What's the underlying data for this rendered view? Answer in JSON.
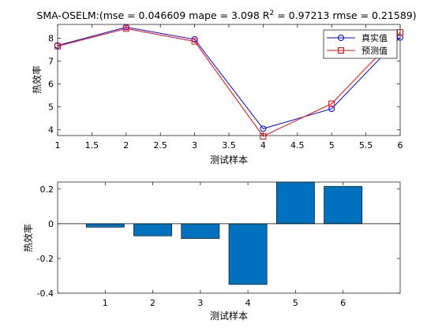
{
  "chart_data": [
    {
      "type": "line",
      "title_main": "SMA-OSELM:(mse = 0.046609 mape = 3.098  R",
      "title_sup": "2",
      "title_rest": " = 0.97213 rmse = 0.21589)",
      "xlabel": "测试样本",
      "ylabel": "热效率",
      "xlim": [
        1,
        6
      ],
      "ylim": [
        3.75,
        8.6
      ],
      "xticks": [
        1,
        1.5,
        2,
        2.5,
        3,
        3.5,
        4,
        4.5,
        5,
        5.5,
        6
      ],
      "xtick_labels": [
        "1",
        "1.5",
        "2",
        "2.5",
        "3",
        "3.5",
        "4",
        "4.5",
        "5",
        "5.5",
        "6"
      ],
      "yticks": [
        4,
        5,
        6,
        7,
        8
      ],
      "ytick_labels": [
        "4",
        "5",
        "6",
        "7",
        "8"
      ],
      "x": [
        1,
        2,
        3,
        4,
        5,
        6
      ],
      "series": [
        {
          "name": "真实值",
          "values": [
            7.68,
            8.48,
            7.95,
            4.05,
            4.92,
            8.03
          ],
          "color": "#0000ff",
          "marker": "circle"
        },
        {
          "name": "预测值",
          "values": [
            7.65,
            8.42,
            7.86,
            3.72,
            5.14,
            8.25
          ],
          "color": "#ff0000",
          "marker": "square"
        }
      ],
      "legend": "top-right"
    },
    {
      "type": "bar",
      "xlabel": "测试样本",
      "ylabel": "热效率",
      "xlim": [
        0,
        7.2
      ],
      "ylim": [
        -0.4,
        0.24
      ],
      "yticks": [
        -0.4,
        -0.2,
        0,
        0.2
      ],
      "ytick_labels": [
        "-0.4",
        "-0.2",
        "0",
        "0.2"
      ],
      "categories": [
        "1",
        "2",
        "3",
        "4",
        "5",
        "6"
      ],
      "values": [
        -0.02,
        -0.07,
        -0.085,
        -0.35,
        0.24,
        0.215
      ],
      "color": "#0072bd"
    }
  ]
}
